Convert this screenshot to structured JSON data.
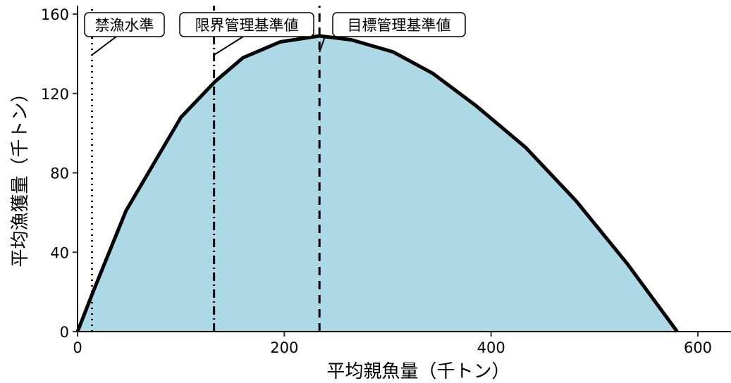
{
  "chart_data": {
    "type": "area",
    "xlabel": "平均親魚量（千トン）",
    "ylabel": "平均漁獲量（千トン）",
    "xlim": [
      0,
      630
    ],
    "ylim": [
      0,
      160
    ],
    "x_ticks": [
      0,
      200,
      400,
      600
    ],
    "y_ticks": [
      0,
      40,
      80,
      120,
      160
    ],
    "grid": false,
    "fill_color": "#add8e6",
    "line_color": "#000000",
    "series": [
      {
        "x": [
          0,
          15,
          47,
          100,
          133,
          160,
          196,
          234,
          265,
          305,
          344,
          385,
          433,
          482,
          532,
          580
        ],
        "y": [
          0,
          20,
          61,
          108,
          126,
          138,
          146,
          149,
          147,
          141,
          130,
          114,
          93,
          66,
          34,
          0
        ]
      }
    ],
    "reference_lines": [
      {
        "label": "禁漁水準",
        "x": 14,
        "style": "dotted"
      },
      {
        "label": "限界管理基準値",
        "x": 132,
        "style": "dashdot"
      },
      {
        "label": "目標管理基準値",
        "x": 234,
        "style": "dashed"
      }
    ]
  }
}
